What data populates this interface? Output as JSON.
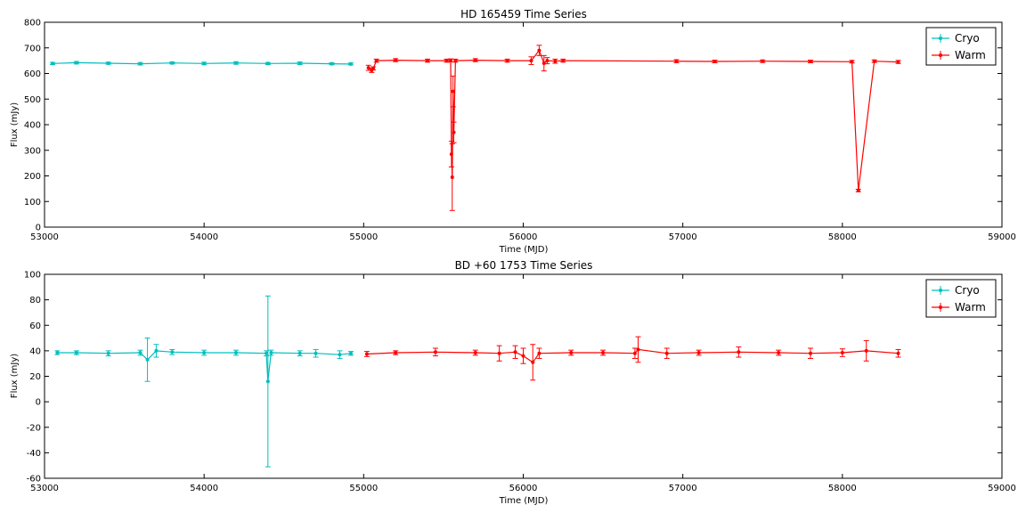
{
  "chart_data": [
    {
      "type": "line",
      "title": "HD 165459 Time Series",
      "xlabel": "Time (MJD)",
      "ylabel": "Flux (mJy)",
      "xlim": [
        53000,
        59000
      ],
      "ylim": [
        0,
        800
      ],
      "xticks": [
        53000,
        54000,
        55000,
        56000,
        57000,
        58000,
        59000
      ],
      "yticks": [
        0,
        100,
        200,
        300,
        400,
        500,
        600,
        700,
        800
      ],
      "legend": "top-right",
      "series": [
        {
          "name": "Cryo",
          "color": "#00bfbf",
          "points": [
            [
              53050,
              639,
              4
            ],
            [
              53200,
              642,
              5
            ],
            [
              53400,
              640,
              4
            ],
            [
              53600,
              638,
              5
            ],
            [
              53800,
              641,
              4
            ],
            [
              54000,
              639,
              5
            ],
            [
              54200,
              641,
              5
            ],
            [
              54400,
              639,
              4
            ],
            [
              54600,
              640,
              5
            ],
            [
              54800,
              638,
              4
            ],
            [
              54920,
              637,
              4
            ]
          ]
        },
        {
          "name": "Warm",
          "color": "#ff0000",
          "points": [
            [
              55030,
              622,
              10
            ],
            [
              55050,
              612,
              8
            ],
            [
              55060,
              620,
              6
            ],
            [
              55080,
              650,
              6
            ],
            [
              55200,
              652,
              6
            ],
            [
              55400,
              650,
              6
            ],
            [
              55520,
              650,
              6
            ],
            [
              55545,
              651,
              6
            ],
            [
              55550,
              285,
              50
            ],
            [
              55555,
              195,
              130
            ],
            [
              55560,
              530,
              60
            ],
            [
              55565,
              370,
              40
            ],
            [
              55575,
              650,
              6
            ],
            [
              55700,
              652,
              6
            ],
            [
              55900,
              650,
              6
            ],
            [
              56050,
              650,
              15
            ],
            [
              56100,
              690,
              20
            ],
            [
              56130,
              640,
              30
            ],
            [
              56150,
              650,
              12
            ],
            [
              56200,
              648,
              8
            ],
            [
              56250,
              650,
              6
            ],
            [
              56960,
              648,
              6
            ],
            [
              57200,
              647,
              5
            ],
            [
              57500,
              648,
              5
            ],
            [
              57800,
              647,
              5
            ],
            [
              58060,
              646,
              5
            ],
            [
              58100,
              143,
              5
            ],
            [
              58200,
              648,
              5
            ],
            [
              58350,
              645,
              6
            ]
          ]
        }
      ]
    },
    {
      "type": "line",
      "title": "BD +60 1753 Time Series",
      "xlabel": "Time (MJD)",
      "ylabel": "Flux (mJy)",
      "xlim": [
        53000,
        59000
      ],
      "ylim": [
        -60,
        100
      ],
      "xticks": [
        53000,
        54000,
        55000,
        56000,
        57000,
        58000,
        59000
      ],
      "yticks": [
        -60,
        -40,
        -20,
        0,
        20,
        40,
        60,
        80,
        100
      ],
      "legend": "top-right",
      "series": [
        {
          "name": "Cryo",
          "color": "#00bfbf",
          "points": [
            [
              53080,
              38.5,
              1.5
            ],
            [
              53200,
              38.5,
              1.5
            ],
            [
              53400,
              38,
              2
            ],
            [
              53600,
              38.5,
              2
            ],
            [
              53645,
              33,
              17
            ],
            [
              53700,
              40,
              5
            ],
            [
              53800,
              39,
              2
            ],
            [
              54000,
              38.5,
              2
            ],
            [
              54200,
              38.5,
              2
            ],
            [
              54390,
              38,
              2
            ],
            [
              54400,
              16,
              67
            ],
            [
              54420,
              38.5,
              2
            ],
            [
              54600,
              38,
              2
            ],
            [
              54700,
              38,
              3
            ],
            [
              54850,
              37,
              3
            ],
            [
              54920,
              38,
              1.5
            ]
          ]
        },
        {
          "name": "Warm",
          "color": "#ff0000",
          "points": [
            [
              55020,
              37.5,
              2
            ],
            [
              55200,
              38.5,
              1.5
            ],
            [
              55450,
              39,
              3
            ],
            [
              55700,
              38.5,
              2
            ],
            [
              55850,
              38,
              6
            ],
            [
              55950,
              39,
              5
            ],
            [
              56000,
              36,
              6
            ],
            [
              56060,
              31,
              14
            ],
            [
              56100,
              38,
              4
            ],
            [
              56300,
              38.5,
              2
            ],
            [
              56500,
              38.5,
              2
            ],
            [
              56700,
              38,
              4
            ],
            [
              56720,
              41,
              10
            ],
            [
              56900,
              38,
              4
            ],
            [
              57100,
              38.5,
              2
            ],
            [
              57350,
              39,
              4
            ],
            [
              57600,
              38.5,
              2
            ],
            [
              57800,
              38,
              4
            ],
            [
              58000,
              38.5,
              3
            ],
            [
              58150,
              40,
              8
            ],
            [
              58350,
              38,
              3
            ]
          ]
        }
      ]
    }
  ]
}
